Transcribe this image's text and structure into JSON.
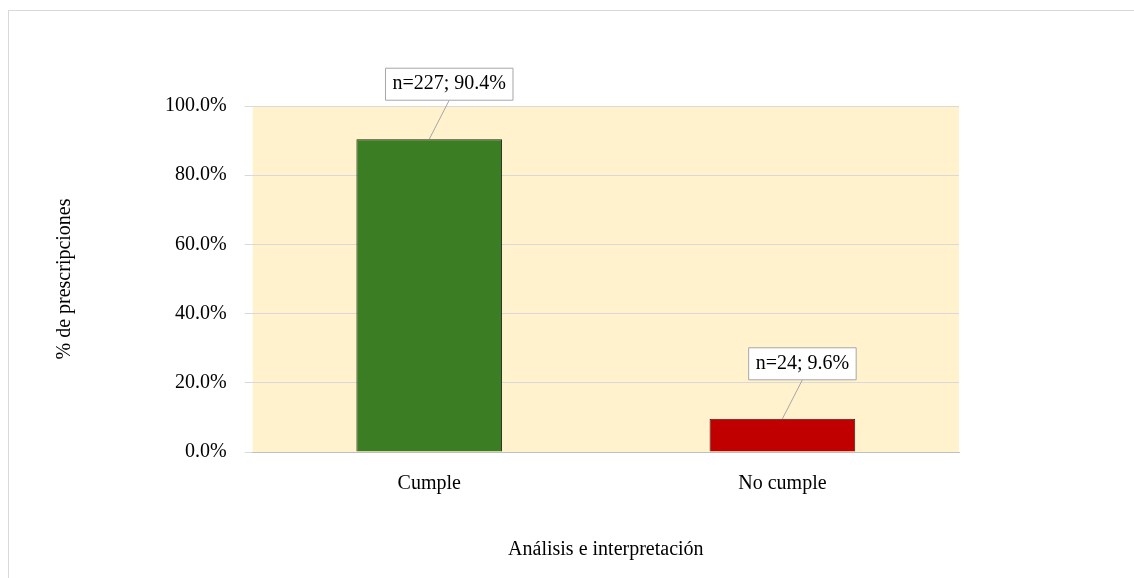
{
  "chart_data": {
    "type": "bar",
    "xlabel": "Análisis e interpretación",
    "ylabel": "% de prescripciones",
    "categories": [
      "Cumple",
      "No cumple"
    ],
    "values": [
      90.4,
      9.6
    ],
    "colors": [
      "#3a7d22",
      "#c00000"
    ],
    "value_labels": [
      "n=227; 90.4%",
      "n=24; 9.6%"
    ],
    "ylim": [
      0,
      100
    ],
    "yticks": [
      {
        "value": 0,
        "label": "0.0%"
      },
      {
        "value": 20,
        "label": "20.0%"
      },
      {
        "value": 40,
        "label": "40.0%"
      },
      {
        "value": 60,
        "label": "60.0%"
      },
      {
        "value": 80,
        "label": "80.0%"
      },
      {
        "value": 100,
        "label": "100.0%"
      }
    ],
    "grid": "y",
    "legend": false
  }
}
